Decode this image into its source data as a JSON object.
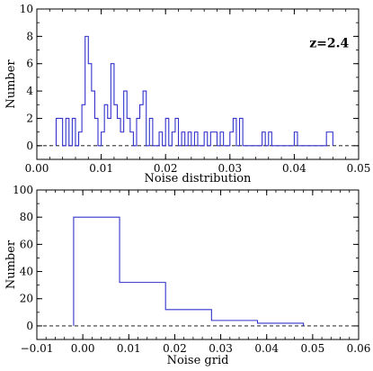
{
  "chart_data": [
    {
      "type": "step",
      "xlabel": "Noise distribution",
      "ylabel": "Number",
      "annotation": "z=2.4",
      "xlim": [
        0.0,
        0.05
      ],
      "ylim": [
        -1,
        10
      ],
      "xticks": [
        0.0,
        0.01,
        0.02,
        0.03,
        0.04,
        0.05
      ],
      "xtick_labels": [
        "0.00",
        "0.01",
        "0.02",
        "0.03",
        "0.04",
        "0.05"
      ],
      "yticks": [
        0,
        2,
        4,
        6,
        8,
        10
      ],
      "ytick_labels": [
        "0",
        "2",
        "4",
        "6",
        "8",
        "10"
      ],
      "x_minor_step": 0.002,
      "y_minor_step": 1,
      "zero_line": "dashed",
      "line_color": "#3333cc",
      "bin_width": 0.0005,
      "bins": [
        [
          0.003,
          2
        ],
        [
          0.0035,
          2
        ],
        [
          0.004,
          0
        ],
        [
          0.0045,
          2
        ],
        [
          0.005,
          0
        ],
        [
          0.0055,
          2
        ],
        [
          0.006,
          0
        ],
        [
          0.0065,
          1
        ],
        [
          0.007,
          3
        ],
        [
          0.0075,
          8
        ],
        [
          0.008,
          6
        ],
        [
          0.0085,
          4
        ],
        [
          0.009,
          2
        ],
        [
          0.0095,
          0
        ],
        [
          0.01,
          1
        ],
        [
          0.0105,
          3
        ],
        [
          0.011,
          2
        ],
        [
          0.0115,
          6
        ],
        [
          0.012,
          3
        ],
        [
          0.0125,
          2
        ],
        [
          0.013,
          1
        ],
        [
          0.0135,
          4
        ],
        [
          0.014,
          2
        ],
        [
          0.0145,
          1
        ],
        [
          0.015,
          0
        ],
        [
          0.0155,
          2
        ],
        [
          0.016,
          3
        ],
        [
          0.0165,
          4
        ],
        [
          0.017,
          0
        ],
        [
          0.0175,
          2
        ],
        [
          0.018,
          0
        ],
        [
          0.0185,
          0
        ],
        [
          0.019,
          1
        ],
        [
          0.0195,
          0
        ],
        [
          0.02,
          2
        ],
        [
          0.0205,
          0
        ],
        [
          0.021,
          1
        ],
        [
          0.0215,
          2
        ],
        [
          0.022,
          0
        ],
        [
          0.0225,
          1
        ],
        [
          0.023,
          0
        ],
        [
          0.0235,
          1
        ],
        [
          0.024,
          0
        ],
        [
          0.0245,
          1
        ],
        [
          0.025,
          0
        ],
        [
          0.0255,
          0
        ],
        [
          0.026,
          1
        ],
        [
          0.0265,
          0
        ],
        [
          0.027,
          1
        ],
        [
          0.0275,
          1
        ],
        [
          0.028,
          0
        ],
        [
          0.0285,
          1
        ],
        [
          0.029,
          0
        ],
        [
          0.0295,
          0
        ],
        [
          0.03,
          1
        ],
        [
          0.0305,
          2
        ],
        [
          0.031,
          0
        ],
        [
          0.0315,
          2
        ],
        [
          0.032,
          0
        ],
        [
          0.0325,
          0
        ],
        [
          0.033,
          0
        ],
        [
          0.0335,
          0
        ],
        [
          0.034,
          0
        ],
        [
          0.0345,
          0
        ],
        [
          0.035,
          1
        ],
        [
          0.0355,
          0
        ],
        [
          0.036,
          1
        ],
        [
          0.0365,
          0
        ],
        [
          0.037,
          0
        ],
        [
          0.0375,
          0
        ],
        [
          0.038,
          0
        ],
        [
          0.0385,
          0
        ],
        [
          0.039,
          0
        ],
        [
          0.0395,
          0
        ],
        [
          0.04,
          1
        ],
        [
          0.0405,
          0
        ],
        [
          0.041,
          0
        ],
        [
          0.0415,
          0
        ],
        [
          0.042,
          0
        ],
        [
          0.0425,
          0
        ],
        [
          0.043,
          0
        ],
        [
          0.0435,
          0
        ],
        [
          0.044,
          0
        ],
        [
          0.0445,
          0
        ],
        [
          0.045,
          1
        ],
        [
          0.0455,
          1
        ]
      ]
    },
    {
      "type": "step",
      "xlabel": "Noise grid",
      "ylabel": "Number",
      "xlim": [
        -0.01,
        0.06
      ],
      "ylim": [
        -10,
        100
      ],
      "xticks": [
        -0.01,
        0.0,
        0.01,
        0.02,
        0.03,
        0.04,
        0.05,
        0.06
      ],
      "xtick_labels": [
        "−0.01",
        "0.00",
        "0.01",
        "0.02",
        "0.03",
        "0.04",
        "0.05",
        "0.06"
      ],
      "yticks": [
        0,
        20,
        40,
        60,
        80,
        100
      ],
      "ytick_labels": [
        "0",
        "20",
        "40",
        "60",
        "80",
        "100"
      ],
      "x_minor_step": 0.002,
      "y_minor_step": 10,
      "zero_line": "dashed",
      "line_color": "#3333cc",
      "bin_width": 0.01,
      "bins": [
        [
          -0.002,
          80
        ],
        [
          0.008,
          32
        ],
        [
          0.018,
          12
        ],
        [
          0.028,
          4
        ],
        [
          0.038,
          2
        ]
      ]
    }
  ]
}
